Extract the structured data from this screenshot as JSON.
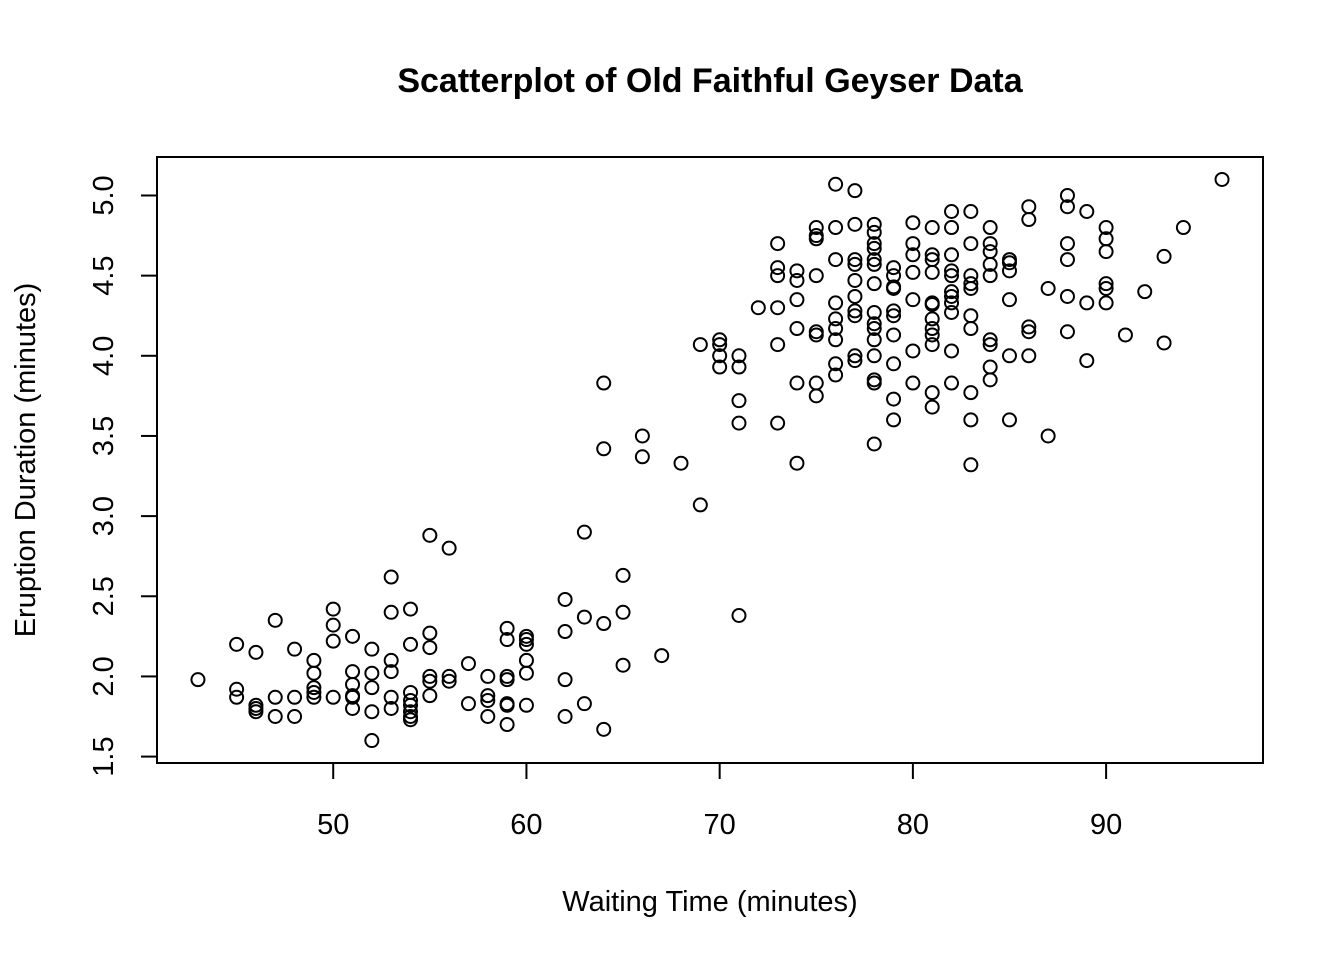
{
  "chart_data": {
    "type": "scatter",
    "title": "Scatterplot of Old Faithful Geyser Data",
    "xlabel": "Waiting Time (minutes)",
    "ylabel": "Eruption Duration (minutes)",
    "xlim": [
      40.88,
      98.12
    ],
    "ylim": [
      1.46,
      5.24
    ],
    "xticks": [
      50,
      60,
      70,
      80,
      90
    ],
    "yticks": [
      1.5,
      2.0,
      2.5,
      3.0,
      3.5,
      4.0,
      4.5,
      5.0
    ],
    "xtick_labels": [
      "50",
      "60",
      "70",
      "80",
      "90"
    ],
    "ytick_labels": [
      "1.5",
      "2.0",
      "2.5",
      "3.0",
      "3.5",
      "4.0",
      "4.5",
      "5.0"
    ],
    "grid": false,
    "marker": "open-circle",
    "marker_color": "#000000",
    "points": [
      [
        43,
        1.98
      ],
      [
        45,
        2.2
      ],
      [
        45,
        1.92
      ],
      [
        45,
        1.87
      ],
      [
        46,
        2.15
      ],
      [
        46,
        1.82
      ],
      [
        46,
        1.78
      ],
      [
        46,
        1.8
      ],
      [
        47,
        2.35
      ],
      [
        47,
        1.87
      ],
      [
        47,
        1.75
      ],
      [
        48,
        2.17
      ],
      [
        48,
        1.87
      ],
      [
        48,
        1.75
      ],
      [
        49,
        2.1
      ],
      [
        49,
        2.02
      ],
      [
        49,
        1.93
      ],
      [
        49,
        1.9
      ],
      [
        49,
        1.87
      ],
      [
        50,
        2.42
      ],
      [
        50,
        2.32
      ],
      [
        50,
        2.22
      ],
      [
        50,
        1.87
      ],
      [
        51,
        2.25
      ],
      [
        51,
        2.03
      ],
      [
        51,
        1.95
      ],
      [
        51,
        1.88
      ],
      [
        51,
        1.8
      ],
      [
        51,
        1.87
      ],
      [
        52,
        2.17
      ],
      [
        52,
        2.02
      ],
      [
        52,
        1.93
      ],
      [
        52,
        1.78
      ],
      [
        52,
        1.6
      ],
      [
        53,
        2.62
      ],
      [
        53,
        2.4
      ],
      [
        53,
        2.1
      ],
      [
        53,
        2.03
      ],
      [
        53,
        1.87
      ],
      [
        53,
        1.8
      ],
      [
        54,
        2.42
      ],
      [
        54,
        2.2
      ],
      [
        54,
        1.9
      ],
      [
        54,
        1.85
      ],
      [
        54,
        1.82
      ],
      [
        54,
        1.78
      ],
      [
        54,
        1.75
      ],
      [
        54,
        1.73
      ],
      [
        55,
        2.88
      ],
      [
        55,
        2.27
      ],
      [
        55,
        2.18
      ],
      [
        55,
        2.0
      ],
      [
        55,
        1.97
      ],
      [
        55,
        1.88
      ],
      [
        56,
        2.8
      ],
      [
        56,
        2.0
      ],
      [
        56,
        1.97
      ],
      [
        57,
        2.08
      ],
      [
        57,
        1.83
      ],
      [
        58,
        2.0
      ],
      [
        58,
        1.88
      ],
      [
        58,
        1.85
      ],
      [
        58,
        1.75
      ],
      [
        59,
        2.3
      ],
      [
        59,
        2.23
      ],
      [
        59,
        2.0
      ],
      [
        59,
        1.98
      ],
      [
        59,
        1.83
      ],
      [
        59,
        1.82
      ],
      [
        59,
        1.7
      ],
      [
        60,
        2.25
      ],
      [
        60,
        2.23
      ],
      [
        60,
        2.2
      ],
      [
        60,
        2.1
      ],
      [
        60,
        2.02
      ],
      [
        60,
        1.82
      ],
      [
        62,
        2.48
      ],
      [
        62,
        2.28
      ],
      [
        62,
        1.98
      ],
      [
        62,
        1.75
      ],
      [
        63,
        2.9
      ],
      [
        63,
        2.37
      ],
      [
        63,
        1.83
      ],
      [
        64,
        3.83
      ],
      [
        64,
        3.42
      ],
      [
        64,
        2.33
      ],
      [
        64,
        1.67
      ],
      [
        65,
        2.63
      ],
      [
        65,
        2.4
      ],
      [
        65,
        2.07
      ],
      [
        66,
        3.5
      ],
      [
        66,
        3.37
      ],
      [
        67,
        2.13
      ],
      [
        68,
        3.33
      ],
      [
        69,
        4.07
      ],
      [
        69,
        3.07
      ],
      [
        70,
        4.1
      ],
      [
        70,
        4.07
      ],
      [
        70,
        4.0
      ],
      [
        70,
        3.93
      ],
      [
        71,
        4.0
      ],
      [
        71,
        3.93
      ],
      [
        71,
        3.72
      ],
      [
        71,
        3.58
      ],
      [
        71,
        2.38
      ],
      [
        72,
        4.3
      ],
      [
        73,
        4.7
      ],
      [
        73,
        4.55
      ],
      [
        73,
        4.5
      ],
      [
        73,
        4.3
      ],
      [
        73,
        4.07
      ],
      [
        73,
        3.58
      ],
      [
        74,
        4.53
      ],
      [
        74,
        4.47
      ],
      [
        74,
        4.35
      ],
      [
        74,
        4.17
      ],
      [
        74,
        3.83
      ],
      [
        74,
        3.33
      ],
      [
        75,
        4.8
      ],
      [
        75,
        4.75
      ],
      [
        75,
        4.73
      ],
      [
        75,
        4.5
      ],
      [
        75,
        4.15
      ],
      [
        75,
        4.13
      ],
      [
        75,
        3.83
      ],
      [
        75,
        3.75
      ],
      [
        76,
        5.07
      ],
      [
        76,
        4.8
      ],
      [
        76,
        4.6
      ],
      [
        76,
        4.33
      ],
      [
        76,
        4.23
      ],
      [
        76,
        4.17
      ],
      [
        76,
        4.1
      ],
      [
        76,
        3.95
      ],
      [
        76,
        3.88
      ],
      [
        77,
        5.03
      ],
      [
        77,
        4.82
      ],
      [
        77,
        4.6
      ],
      [
        77,
        4.57
      ],
      [
        77,
        4.47
      ],
      [
        77,
        4.37
      ],
      [
        77,
        4.28
      ],
      [
        77,
        4.25
      ],
      [
        77,
        4.0
      ],
      [
        77,
        3.97
      ],
      [
        78,
        4.82
      ],
      [
        78,
        4.77
      ],
      [
        78,
        4.7
      ],
      [
        78,
        4.67
      ],
      [
        78,
        4.6
      ],
      [
        78,
        4.57
      ],
      [
        78,
        4.45
      ],
      [
        78,
        4.27
      ],
      [
        78,
        4.2
      ],
      [
        78,
        4.17
      ],
      [
        78,
        4.1
      ],
      [
        78,
        4.0
      ],
      [
        78,
        3.85
      ],
      [
        78,
        3.83
      ],
      [
        78,
        3.45
      ],
      [
        79,
        4.55
      ],
      [
        79,
        4.5
      ],
      [
        79,
        4.43
      ],
      [
        79,
        4.42
      ],
      [
        79,
        4.28
      ],
      [
        79,
        4.25
      ],
      [
        79,
        4.13
      ],
      [
        79,
        3.95
      ],
      [
        79,
        3.73
      ],
      [
        79,
        3.6
      ],
      [
        80,
        4.83
      ],
      [
        80,
        4.7
      ],
      [
        80,
        4.63
      ],
      [
        80,
        4.52
      ],
      [
        80,
        4.35
      ],
      [
        80,
        4.03
      ],
      [
        80,
        3.83
      ],
      [
        81,
        4.8
      ],
      [
        81,
        4.63
      ],
      [
        81,
        4.6
      ],
      [
        81,
        4.52
      ],
      [
        81,
        4.33
      ],
      [
        81,
        4.32
      ],
      [
        81,
        4.23
      ],
      [
        81,
        4.17
      ],
      [
        81,
        4.13
      ],
      [
        81,
        4.07
      ],
      [
        81,
        3.77
      ],
      [
        81,
        3.68
      ],
      [
        82,
        4.9
      ],
      [
        82,
        4.8
      ],
      [
        82,
        4.63
      ],
      [
        82,
        4.53
      ],
      [
        82,
        4.5
      ],
      [
        82,
        4.4
      ],
      [
        82,
        4.37
      ],
      [
        82,
        4.33
      ],
      [
        82,
        4.27
      ],
      [
        82,
        4.03
      ],
      [
        82,
        3.83
      ],
      [
        83,
        4.9
      ],
      [
        83,
        4.7
      ],
      [
        83,
        4.5
      ],
      [
        83,
        4.45
      ],
      [
        83,
        4.42
      ],
      [
        83,
        4.25
      ],
      [
        83,
        4.17
      ],
      [
        83,
        3.77
      ],
      [
        83,
        3.6
      ],
      [
        83,
        3.32
      ],
      [
        84,
        4.8
      ],
      [
        84,
        4.7
      ],
      [
        84,
        4.65
      ],
      [
        84,
        4.57
      ],
      [
        84,
        4.5
      ],
      [
        84,
        4.1
      ],
      [
        84,
        4.07
      ],
      [
        84,
        3.93
      ],
      [
        84,
        3.85
      ],
      [
        85,
        4.6
      ],
      [
        85,
        4.58
      ],
      [
        85,
        4.53
      ],
      [
        85,
        4.35
      ],
      [
        85,
        4.0
      ],
      [
        85,
        3.6
      ],
      [
        86,
        4.93
      ],
      [
        86,
        4.85
      ],
      [
        86,
        4.18
      ],
      [
        86,
        4.15
      ],
      [
        86,
        4.0
      ],
      [
        87,
        4.42
      ],
      [
        87,
        3.5
      ],
      [
        88,
        5.0
      ],
      [
        88,
        4.93
      ],
      [
        88,
        4.7
      ],
      [
        88,
        4.6
      ],
      [
        88,
        4.37
      ],
      [
        88,
        4.15
      ],
      [
        89,
        4.9
      ],
      [
        89,
        4.33
      ],
      [
        89,
        3.97
      ],
      [
        90,
        4.8
      ],
      [
        90,
        4.73
      ],
      [
        90,
        4.65
      ],
      [
        90,
        4.45
      ],
      [
        90,
        4.42
      ],
      [
        90,
        4.33
      ],
      [
        91,
        4.13
      ],
      [
        92,
        4.4
      ],
      [
        93,
        4.62
      ],
      [
        93,
        4.08
      ],
      [
        94,
        4.8
      ],
      [
        96,
        5.1
      ]
    ]
  }
}
